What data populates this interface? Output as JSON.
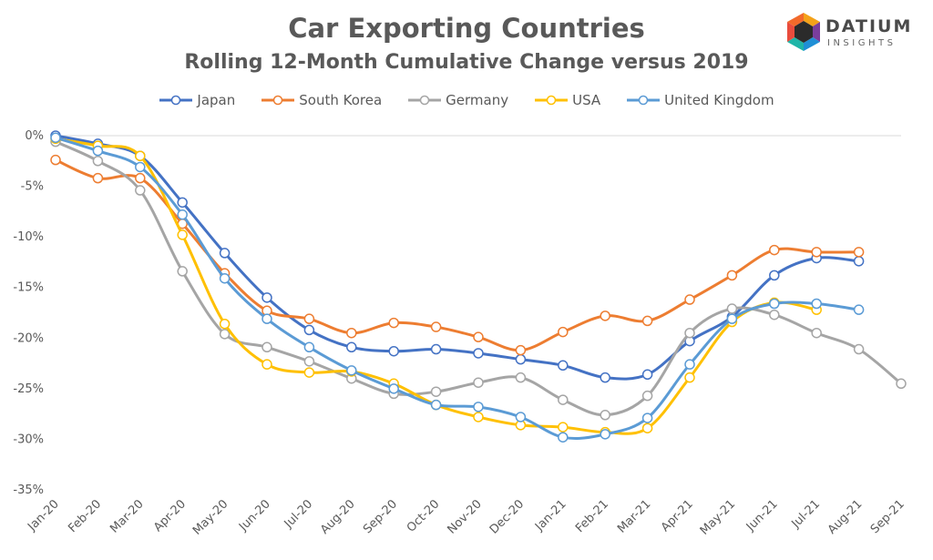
{
  "chart_data": {
    "type": "line",
    "title": "Car Exporting Countries",
    "subtitle": "Rolling 12-Month Cumulative Change versus 2019",
    "categories": [
      "Jan-20",
      "Feb-20",
      "Mar-20",
      "Apr-20",
      "May-20",
      "Jun-20",
      "Jul-20",
      "Aug-20",
      "Sep-20",
      "Oct-20",
      "Nov-20",
      "Dec-20",
      "Jan-21",
      "Feb-21",
      "Mar-21",
      "Apr-21",
      "May-21",
      "Jun-21",
      "Jul-21",
      "Aug-21",
      "Sep-21"
    ],
    "ylim": [
      -35,
      0
    ],
    "yticks": [
      0,
      -5,
      -10,
      -15,
      -20,
      -25,
      -30,
      -35
    ],
    "ytick_labels": [
      "0%",
      "-5%",
      "-10%",
      "-15%",
      "-20%",
      "-25%",
      "-30%",
      "-35%"
    ],
    "grid": "top line only",
    "legend_position": "top",
    "series": [
      {
        "name": "Japan",
        "color": "#4472C4",
        "values": [
          0,
          -0.8,
          -2,
          -6.6,
          -11.6,
          -16,
          -19.2,
          -20.9,
          -21.3,
          -21.1,
          -21.5,
          -22.1,
          -22.7,
          -23.9,
          -23.6,
          -20.3,
          -17.9,
          -13.8,
          -12.1,
          -12.4,
          null
        ]
      },
      {
        "name": "South Korea",
        "color": "#ED7D31",
        "values": [
          -2.4,
          -4.2,
          -4.2,
          -8.7,
          -13.6,
          -17.3,
          -18.1,
          -19.5,
          -18.5,
          -18.9,
          -19.9,
          -21.2,
          -19.4,
          -17.8,
          -18.3,
          -16.2,
          -13.8,
          -11.3,
          -11.5,
          -11.5,
          null
        ]
      },
      {
        "name": "Germany",
        "color": "#A5A5A5",
        "values": [
          -0.6,
          -2.5,
          -5.4,
          -13.4,
          -19.6,
          -20.9,
          -22.3,
          -24,
          -25.5,
          -25.3,
          -24.4,
          -23.9,
          -26.1,
          -27.6,
          -25.7,
          -19.5,
          -17.1,
          -17.7,
          -19.5,
          -21.1,
          -24.5
        ]
      },
      {
        "name": "USA",
        "color": "#FFC000",
        "values": [
          -0.3,
          -1,
          -2,
          -9.8,
          -18.6,
          -22.6,
          -23.4,
          -23.3,
          -24.5,
          -26.6,
          -27.8,
          -28.6,
          -28.8,
          -29.3,
          -28.9,
          -23.9,
          -18.4,
          -16.5,
          -17.2,
          null,
          null
        ]
      },
      {
        "name": "United Kingdom",
        "color": "#5B9BD5",
        "values": [
          -0.2,
          -1.5,
          -3.1,
          -7.8,
          -14.1,
          -18.1,
          -20.9,
          -23.2,
          -25,
          -26.6,
          -26.8,
          -27.8,
          -29.8,
          -29.5,
          -27.9,
          -22.6,
          -18.1,
          -16.6,
          -16.6,
          -17.2,
          null
        ]
      }
    ]
  },
  "logo": {
    "name": "DATIUM",
    "tagline": "INSIGHTS"
  }
}
